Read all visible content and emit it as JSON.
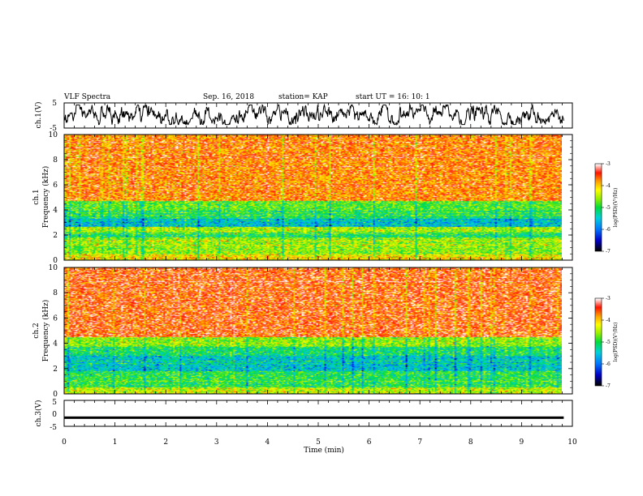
{
  "header": {
    "title": "VLF Spectra",
    "date": "Sep. 16, 2018",
    "station": "station= KAP",
    "start": "start  UT  =   16: 10: 1"
  },
  "chart_data": [
    {
      "type": "line",
      "panel": "ch1-waveform",
      "ylabel": "ch.1(V)",
      "ylim": [
        -5,
        5
      ],
      "yticks": [
        "5",
        "-5"
      ],
      "xlim": [
        0,
        10
      ],
      "color": "#000000",
      "signal_level": 0.0,
      "signal_amplitude": 2.6
    },
    {
      "type": "heatmap",
      "panel": "ch1-spectrogram",
      "ylabel": "ch.1\nFrequency  (kHz)",
      "xlim": [
        0,
        9.83
      ],
      "ylim": [
        0,
        10
      ],
      "yticks": [
        "0",
        "2",
        "4",
        "6",
        "8",
        "10"
      ],
      "bands": [
        {
          "from": 0.0,
          "to": 0.4,
          "level": -4.2
        },
        {
          "from": 0.4,
          "to": 1.8,
          "level": -4.6
        },
        {
          "from": 1.8,
          "to": 2.2,
          "level": -5.1
        },
        {
          "from": 2.2,
          "to": 2.6,
          "level": -4.5
        },
        {
          "from": 2.6,
          "to": 3.3,
          "level": -5.6
        },
        {
          "from": 3.3,
          "to": 3.9,
          "level": -5.1
        },
        {
          "from": 3.9,
          "to": 4.7,
          "level": -4.8
        },
        {
          "from": 4.7,
          "to": 10.0,
          "level": -3.7
        }
      ],
      "colorbar": {
        "label": "log(PSD)(V²/Hz)",
        "min": -7,
        "max": -3,
        "ticks": [
          "-3",
          "-4",
          "-5",
          "-6",
          "-7"
        ]
      }
    },
    {
      "type": "heatmap",
      "panel": "ch2-spectrogram",
      "ylabel": "ch.2\nFrequency  (kHz)",
      "xlim": [
        0,
        9.83
      ],
      "ylim": [
        0,
        10
      ],
      "yticks": [
        "0",
        "2",
        "4",
        "6",
        "8",
        "10"
      ],
      "bands": [
        {
          "from": 0.0,
          "to": 0.5,
          "level": -4.4
        },
        {
          "from": 0.5,
          "to": 1.8,
          "level": -5.0
        },
        {
          "from": 1.8,
          "to": 3.0,
          "level": -5.5
        },
        {
          "from": 3.0,
          "to": 3.8,
          "level": -5.1
        },
        {
          "from": 3.8,
          "to": 4.5,
          "level": -4.6
        },
        {
          "from": 4.5,
          "to": 10.0,
          "level": -3.5
        }
      ],
      "colorbar": {
        "label": "log(PSD)(V²/Hz)",
        "min": -7,
        "max": -3,
        "ticks": [
          "-3",
          "-4",
          "-5",
          "-6",
          "-7"
        ]
      }
    },
    {
      "type": "line",
      "panel": "ch3-waveform",
      "ylabel": "ch.3(V)",
      "ylim": [
        -5,
        5
      ],
      "yticks": [
        "5",
        "0",
        "-5"
      ],
      "xlim": [
        0,
        10
      ],
      "xlabel": "Time  (min)",
      "xticks": [
        "0",
        "1",
        "2",
        "3",
        "4",
        "5",
        "6",
        "7",
        "8",
        "9",
        "10"
      ],
      "color": "#000000",
      "signal_level": -1.5,
      "signal_amplitude": 0.3,
      "signal_end": 9.83
    }
  ]
}
